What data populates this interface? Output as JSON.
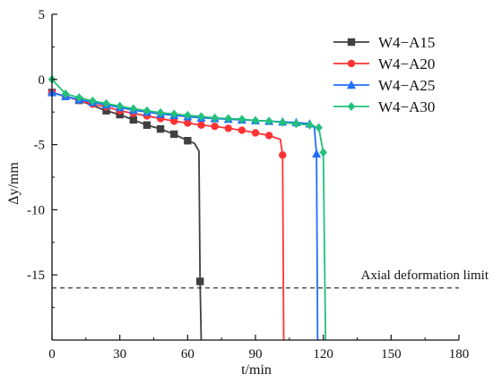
{
  "chart_data": {
    "type": "line",
    "xlabel": "t/min",
    "ylabel": "Δy/mm",
    "xlim": [
      0,
      180
    ],
    "ylim": [
      -20,
      5
    ],
    "xticks": [
      0,
      30,
      60,
      90,
      120,
      150,
      180
    ],
    "yticks": [
      5,
      0,
      -5,
      -10,
      -15
    ],
    "grid": false,
    "legend_position": "top-right",
    "reference_line": {
      "y": -16,
      "label": "Axial deformation limit",
      "style": "dashed",
      "color": "#555555"
    },
    "series": [
      {
        "name": "W4−A15",
        "color": "#404040",
        "marker": "square",
        "x": [
          0,
          6,
          12,
          18,
          24,
          30,
          36,
          42,
          48,
          54,
          60,
          63,
          65,
          65.5,
          66
        ],
        "y": [
          -1.0,
          -1.3,
          -1.6,
          -2.0,
          -2.4,
          -2.7,
          -3.1,
          -3.5,
          -3.8,
          -4.2,
          -4.7,
          -4.9,
          -5.5,
          -15.5,
          -20
        ],
        "marker_indices": [
          0,
          2,
          4,
          5,
          6,
          7,
          8,
          9,
          10,
          13
        ]
      },
      {
        "name": "W4−A20",
        "color": "#ff3333",
        "marker": "circle",
        "x": [
          0,
          6,
          12,
          18,
          24,
          30,
          36,
          42,
          48,
          54,
          60,
          66,
          72,
          78,
          84,
          90,
          96,
          101,
          102,
          102.5
        ],
        "y": [
          -1.0,
          -1.3,
          -1.6,
          -1.9,
          -2.1,
          -2.4,
          -2.6,
          -2.8,
          -3.0,
          -3.2,
          -3.35,
          -3.5,
          -3.6,
          -3.75,
          -3.9,
          -4.1,
          -4.3,
          -4.6,
          -5.8,
          -20
        ],
        "marker_indices": [
          0,
          1,
          2,
          3,
          4,
          5,
          6,
          7,
          8,
          9,
          10,
          11,
          12,
          13,
          14,
          15,
          16,
          18
        ]
      },
      {
        "name": "W4−A25",
        "color": "#1f6fff",
        "marker": "triangle",
        "x": [
          0,
          6,
          12,
          18,
          24,
          30,
          36,
          42,
          48,
          54,
          60,
          66,
          72,
          78,
          84,
          90,
          96,
          102,
          108,
          114,
          116,
          117,
          117.5
        ],
        "y": [
          -1.0,
          -1.3,
          -1.55,
          -1.75,
          -1.95,
          -2.15,
          -2.35,
          -2.5,
          -2.65,
          -2.75,
          -2.85,
          -2.95,
          -3.0,
          -3.05,
          -3.1,
          -3.15,
          -3.2,
          -3.25,
          -3.3,
          -3.4,
          -3.6,
          -5.7,
          -20
        ],
        "marker_indices": [
          0,
          1,
          2,
          3,
          4,
          5,
          6,
          7,
          8,
          9,
          10,
          11,
          12,
          13,
          14,
          15,
          16,
          17,
          18,
          19,
          21
        ]
      },
      {
        "name": "W4−A30",
        "color": "#22c07a",
        "marker": "diamond",
        "x": [
          0,
          6,
          12,
          18,
          24,
          30,
          36,
          42,
          48,
          54,
          60,
          66,
          72,
          78,
          84,
          90,
          96,
          102,
          108,
          114,
          118,
          120,
          121
        ],
        "y": [
          0,
          -1.1,
          -1.4,
          -1.65,
          -1.85,
          -2.05,
          -2.25,
          -2.4,
          -2.55,
          -2.65,
          -2.75,
          -2.85,
          -2.95,
          -3.0,
          -3.05,
          -3.15,
          -3.2,
          -3.3,
          -3.4,
          -3.5,
          -3.7,
          -5.6,
          -20
        ],
        "marker_indices": [
          0,
          1,
          2,
          3,
          4,
          5,
          6,
          7,
          8,
          9,
          10,
          11,
          12,
          13,
          14,
          15,
          16,
          17,
          18,
          19,
          20,
          21
        ]
      }
    ]
  }
}
